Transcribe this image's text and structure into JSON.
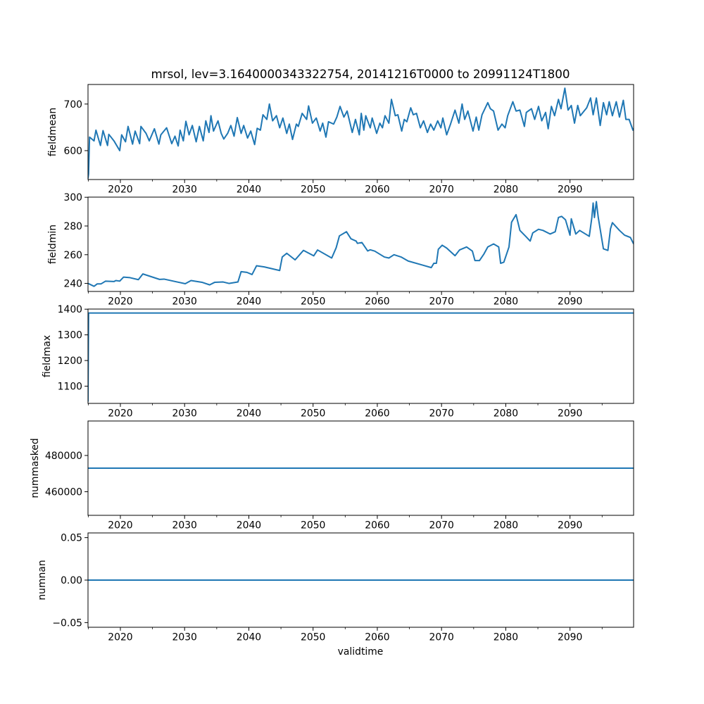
{
  "chart_data": {
    "type": "line",
    "title": "mrsol, lev=3.1640000343322754, 20141216T0000 to 20991124T1800",
    "xlabel": "validtime",
    "xlim": [
      2014.96,
      2099.9
    ],
    "x_major_ticks": [
      2020,
      2030,
      2040,
      2050,
      2060,
      2070,
      2080,
      2090
    ],
    "x_major_tick_labels": [
      "2020",
      "2030",
      "2040",
      "2050",
      "2060",
      "2070",
      "2080",
      "2090"
    ],
    "x_minor_ticks": [
      2015,
      2025,
      2035,
      2045,
      2055,
      2065,
      2075,
      2085,
      2095
    ],
    "line_color": "#1f77b4",
    "grid": false,
    "panels": [
      {
        "ylabel": "fieldmean",
        "ylim": [
          538,
          742
        ],
        "yticks": [
          600,
          700
        ],
        "ytick_labels": [
          "600",
          "700"
        ],
        "points": [
          [
            2014.96,
            540
          ],
          [
            2015.05,
            550
          ],
          [
            2015.2,
            629
          ],
          [
            2015.9,
            621
          ],
          [
            2016.2,
            644
          ],
          [
            2016.9,
            611
          ],
          [
            2017.3,
            643
          ],
          [
            2018,
            611
          ],
          [
            2018.2,
            635
          ],
          [
            2019,
            621
          ],
          [
            2019.9,
            600
          ],
          [
            2020.2,
            634
          ],
          [
            2020.8,
            619
          ],
          [
            2021.2,
            652
          ],
          [
            2021.9,
            614
          ],
          [
            2022.3,
            642
          ],
          [
            2023,
            615
          ],
          [
            2023.2,
            652
          ],
          [
            2024,
            637
          ],
          [
            2024.5,
            621
          ],
          [
            2025.3,
            647
          ],
          [
            2026,
            614
          ],
          [
            2026.3,
            634
          ],
          [
            2027.2,
            649
          ],
          [
            2028,
            615
          ],
          [
            2028.5,
            631
          ],
          [
            2029,
            610
          ],
          [
            2029.3,
            644
          ],
          [
            2029.8,
            621
          ],
          [
            2030.2,
            663
          ],
          [
            2030.7,
            634
          ],
          [
            2031.2,
            654
          ],
          [
            2031.8,
            619
          ],
          [
            2032.3,
            652
          ],
          [
            2032.9,
            621
          ],
          [
            2033.3,
            664
          ],
          [
            2033.8,
            639
          ],
          [
            2034.1,
            675
          ],
          [
            2034.5,
            642
          ],
          [
            2035.2,
            664
          ],
          [
            2035.7,
            637
          ],
          [
            2036.1,
            625
          ],
          [
            2036.7,
            637
          ],
          [
            2037.2,
            654
          ],
          [
            2037.7,
            631
          ],
          [
            2038.2,
            671
          ],
          [
            2038.8,
            637
          ],
          [
            2039.2,
            654
          ],
          [
            2039.8,
            627
          ],
          [
            2040.3,
            642
          ],
          [
            2040.9,
            613
          ],
          [
            2041.3,
            648
          ],
          [
            2041.8,
            644
          ],
          [
            2042.2,
            677
          ],
          [
            2042.8,
            667
          ],
          [
            2043.2,
            700
          ],
          [
            2043.7,
            664
          ],
          [
            2044.3,
            675
          ],
          [
            2044.8,
            649
          ],
          [
            2045.3,
            670
          ],
          [
            2045.9,
            637
          ],
          [
            2046.3,
            657
          ],
          [
            2046.8,
            624
          ],
          [
            2047.4,
            657
          ],
          [
            2047.7,
            652
          ],
          [
            2048.3,
            680
          ],
          [
            2049,
            667
          ],
          [
            2049.3,
            696
          ],
          [
            2049.9,
            659
          ],
          [
            2050.5,
            670
          ],
          [
            2051.1,
            642
          ],
          [
            2051.5,
            659
          ],
          [
            2052,
            629
          ],
          [
            2052.4,
            662
          ],
          [
            2053.2,
            657
          ],
          [
            2053.7,
            672
          ],
          [
            2054.2,
            695
          ],
          [
            2054.8,
            672
          ],
          [
            2055.3,
            685
          ],
          [
            2056.1,
            639
          ],
          [
            2056.6,
            667
          ],
          [
            2057.2,
            634
          ],
          [
            2057.5,
            680
          ],
          [
            2057.9,
            644
          ],
          [
            2058.2,
            675
          ],
          [
            2058.9,
            649
          ],
          [
            2059.2,
            670
          ],
          [
            2059.9,
            637
          ],
          [
            2060.4,
            659
          ],
          [
            2060.8,
            649
          ],
          [
            2061.2,
            675
          ],
          [
            2061.8,
            659
          ],
          [
            2062.2,
            710
          ],
          [
            2062.8,
            675
          ],
          [
            2063.2,
            677
          ],
          [
            2063.8,
            642
          ],
          [
            2064.2,
            667
          ],
          [
            2064.6,
            662
          ],
          [
            2065.2,
            692
          ],
          [
            2065.6,
            677
          ],
          [
            2066.1,
            680
          ],
          [
            2066.7,
            649
          ],
          [
            2067.2,
            664
          ],
          [
            2067.8,
            639
          ],
          [
            2068.3,
            657
          ],
          [
            2068.8,
            644
          ],
          [
            2069.4,
            664
          ],
          [
            2069.9,
            649
          ],
          [
            2070.2,
            670
          ],
          [
            2070.8,
            634
          ],
          [
            2071.4,
            657
          ],
          [
            2072.1,
            687
          ],
          [
            2072.7,
            659
          ],
          [
            2073.2,
            700
          ],
          [
            2073.6,
            667
          ],
          [
            2074.1,
            685
          ],
          [
            2074.9,
            642
          ],
          [
            2075.4,
            672
          ],
          [
            2075.8,
            644
          ],
          [
            2076.3,
            677
          ],
          [
            2077.2,
            703
          ],
          [
            2077.6,
            690
          ],
          [
            2078.1,
            685
          ],
          [
            2078.8,
            644
          ],
          [
            2079.4,
            657
          ],
          [
            2079.9,
            649
          ],
          [
            2080.3,
            675
          ],
          [
            2081.1,
            705
          ],
          [
            2081.6,
            685
          ],
          [
            2082.2,
            687
          ],
          [
            2082.9,
            652
          ],
          [
            2083.2,
            682
          ],
          [
            2084,
            690
          ],
          [
            2084.5,
            667
          ],
          [
            2085.1,
            695
          ],
          [
            2085.6,
            664
          ],
          [
            2086.2,
            682
          ],
          [
            2086.6,
            647
          ],
          [
            2087.1,
            695
          ],
          [
            2087.6,
            675
          ],
          [
            2088.2,
            710
          ],
          [
            2088.6,
            690
          ],
          [
            2089.2,
            734
          ],
          [
            2089.7,
            687
          ],
          [
            2090.2,
            697
          ],
          [
            2090.7,
            659
          ],
          [
            2091.2,
            697
          ],
          [
            2091.6,
            675
          ],
          [
            2092.6,
            692
          ],
          [
            2093.2,
            713
          ],
          [
            2093.6,
            677
          ],
          [
            2094.1,
            713
          ],
          [
            2094.7,
            654
          ],
          [
            2095.2,
            703
          ],
          [
            2095.7,
            677
          ],
          [
            2096.1,
            705
          ],
          [
            2096.6,
            675
          ],
          [
            2097.2,
            705
          ],
          [
            2097.7,
            672
          ],
          [
            2098.3,
            708
          ],
          [
            2098.7,
            667
          ],
          [
            2099.2,
            667
          ],
          [
            2099.8,
            644
          ],
          [
            2099.9,
            648
          ]
        ]
      },
      {
        "ylabel": "fieldmin",
        "ylim": [
          234.4,
          300.1
        ],
        "yticks": [
          240,
          260,
          280,
          300
        ],
        "ytick_labels": [
          "240",
          "260",
          "280",
          "300"
        ],
        "points": [
          [
            2014.96,
            240
          ],
          [
            2015.9,
            238
          ],
          [
            2016.4,
            239.7
          ],
          [
            2017,
            239.7
          ],
          [
            2017.7,
            241.6
          ],
          [
            2019,
            241.3
          ],
          [
            2019.3,
            242
          ],
          [
            2019.9,
            241.6
          ],
          [
            2020.5,
            244.4
          ],
          [
            2021.5,
            244
          ],
          [
            2022.8,
            242.6
          ],
          [
            2023.5,
            246.6
          ],
          [
            2026.1,
            242.8
          ],
          [
            2026.8,
            243
          ],
          [
            2030.1,
            239.8
          ],
          [
            2031,
            242
          ],
          [
            2032.7,
            240.8
          ],
          [
            2033.9,
            239
          ],
          [
            2034.7,
            240.8
          ],
          [
            2036,
            241
          ],
          [
            2036.9,
            240
          ],
          [
            2038.3,
            241
          ],
          [
            2038.8,
            248.2
          ],
          [
            2039.7,
            247.7
          ],
          [
            2040.5,
            246.2
          ],
          [
            2041.2,
            252.3
          ],
          [
            2042.4,
            251.5
          ],
          [
            2044.8,
            249
          ],
          [
            2045.2,
            258.4
          ],
          [
            2045.9,
            261
          ],
          [
            2047.2,
            256.4
          ],
          [
            2048.5,
            263
          ],
          [
            2050.1,
            259.2
          ],
          [
            2050.7,
            263.3
          ],
          [
            2052.9,
            257.7
          ],
          [
            2053.6,
            264.9
          ],
          [
            2054.1,
            273.1
          ],
          [
            2055.2,
            276
          ],
          [
            2055.9,
            271.1
          ],
          [
            2056.7,
            269.5
          ],
          [
            2056.9,
            267.9
          ],
          [
            2057.6,
            268.5
          ],
          [
            2058.5,
            262.6
          ],
          [
            2058.9,
            263.4
          ],
          [
            2059.6,
            262.5
          ],
          [
            2061.1,
            258.4
          ],
          [
            2061.8,
            257.7
          ],
          [
            2062.6,
            260
          ],
          [
            2063.7,
            258.4
          ],
          [
            2064.8,
            255.6
          ],
          [
            2067,
            252.8
          ],
          [
            2068.4,
            251
          ],
          [
            2068.8,
            254
          ],
          [
            2069.2,
            254
          ],
          [
            2069.5,
            263.8
          ],
          [
            2070.1,
            266.6
          ],
          [
            2070.8,
            264.6
          ],
          [
            2072.1,
            259.3
          ],
          [
            2072.8,
            263.3
          ],
          [
            2073.9,
            265.4
          ],
          [
            2074.8,
            262.5
          ],
          [
            2075.2,
            255.9
          ],
          [
            2075.9,
            255.9
          ],
          [
            2076.6,
            260.5
          ],
          [
            2077.2,
            265.4
          ],
          [
            2078.1,
            267.5
          ],
          [
            2078.9,
            265.4
          ],
          [
            2079.2,
            254
          ],
          [
            2079.7,
            254.8
          ],
          [
            2080.5,
            265.4
          ],
          [
            2080.9,
            282.6
          ],
          [
            2081.6,
            287.9
          ],
          [
            2082.2,
            276.9
          ],
          [
            2083.1,
            272.8
          ],
          [
            2083.8,
            269.5
          ],
          [
            2084.2,
            275.2
          ],
          [
            2085.1,
            277.7
          ],
          [
            2085.8,
            276.9
          ],
          [
            2086.9,
            274.4
          ],
          [
            2087.7,
            276
          ],
          [
            2088.2,
            285.9
          ],
          [
            2088.7,
            286.7
          ],
          [
            2089.3,
            284.3
          ],
          [
            2090,
            273.6
          ],
          [
            2090.2,
            285
          ],
          [
            2090.9,
            274.4
          ],
          [
            2091.5,
            276.9
          ],
          [
            2093,
            272.8
          ],
          [
            2093.4,
            285.9
          ],
          [
            2093.6,
            296
          ],
          [
            2093.8,
            285.9
          ],
          [
            2094.1,
            297
          ],
          [
            2094.4,
            285.9
          ],
          [
            2095.2,
            264.1
          ],
          [
            2095.9,
            263
          ],
          [
            2096.3,
            278
          ],
          [
            2096.6,
            282.3
          ],
          [
            2097.7,
            276.9
          ],
          [
            2098.5,
            273.6
          ],
          [
            2099.4,
            272
          ],
          [
            2099.9,
            267.5
          ]
        ]
      },
      {
        "ylabel": "fieldmax",
        "ylim": [
          1033,
          1400.5
        ],
        "yticks": [
          1100,
          1200,
          1300,
          1400
        ],
        "ytick_labels": [
          "1100",
          "1200",
          "1300",
          "1400"
        ],
        "points": [
          [
            2014.96,
            1040
          ],
          [
            2015.05,
            1385
          ],
          [
            2099.9,
            1385
          ]
        ]
      },
      {
        "ylabel": "nummasked",
        "ylim": [
          446985,
          499015
        ],
        "yticks": [
          460000,
          480000
        ],
        "ytick_labels": [
          "460000",
          "480000"
        ],
        "points": [
          [
            2014.96,
            473000
          ],
          [
            2099.9,
            473000
          ]
        ]
      },
      {
        "ylabel": "numnan",
        "ylim": [
          -0.0555,
          0.0555
        ],
        "yticks": [
          -0.05,
          0.0,
          0.05
        ],
        "ytick_labels": [
          "−0.05",
          "0.00",
          "0.05"
        ],
        "points": [
          [
            2014.96,
            0
          ],
          [
            2099.9,
            0
          ]
        ]
      }
    ]
  }
}
